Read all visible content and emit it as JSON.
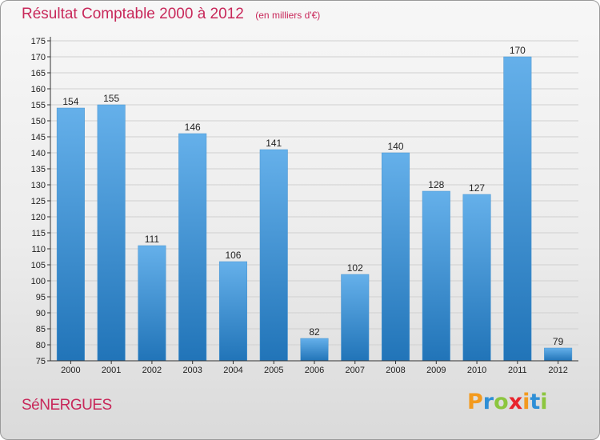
{
  "header": {
    "title": "Résultat Comptable 2000 à 2012",
    "subtitle": "(en milliers d'€)"
  },
  "footer": {
    "place": "SéNERGUES",
    "logo_letters": [
      "P",
      "r",
      "o",
      "x",
      "i",
      "t",
      "i"
    ],
    "logo_colors": [
      "#f39a1e",
      "#2f8fd6",
      "#8cc63f",
      "#e8242c",
      "#f39a1e",
      "#2f8fd6",
      "#8cc63f"
    ]
  },
  "colors": {
    "bar_top": "#65b0ea",
    "bar_bottom": "#2174b8",
    "axis": "#333333",
    "grid": "#d0d0d0"
  },
  "chart_data": {
    "type": "bar",
    "categories": [
      "2000",
      "2001",
      "2002",
      "2003",
      "2004",
      "2005",
      "2006",
      "2007",
      "2008",
      "2009",
      "2010",
      "2011",
      "2012"
    ],
    "values": [
      154,
      155,
      111,
      146,
      106,
      141,
      82,
      102,
      140,
      128,
      127,
      170,
      79
    ],
    "title": "Résultat Comptable 2000 à 2012",
    "subtitle": "(en milliers d'€)",
    "xlabel": "",
    "ylabel": "",
    "ylim": [
      75,
      175
    ],
    "ytick_step": 5,
    "grid": true,
    "legend": "none"
  }
}
